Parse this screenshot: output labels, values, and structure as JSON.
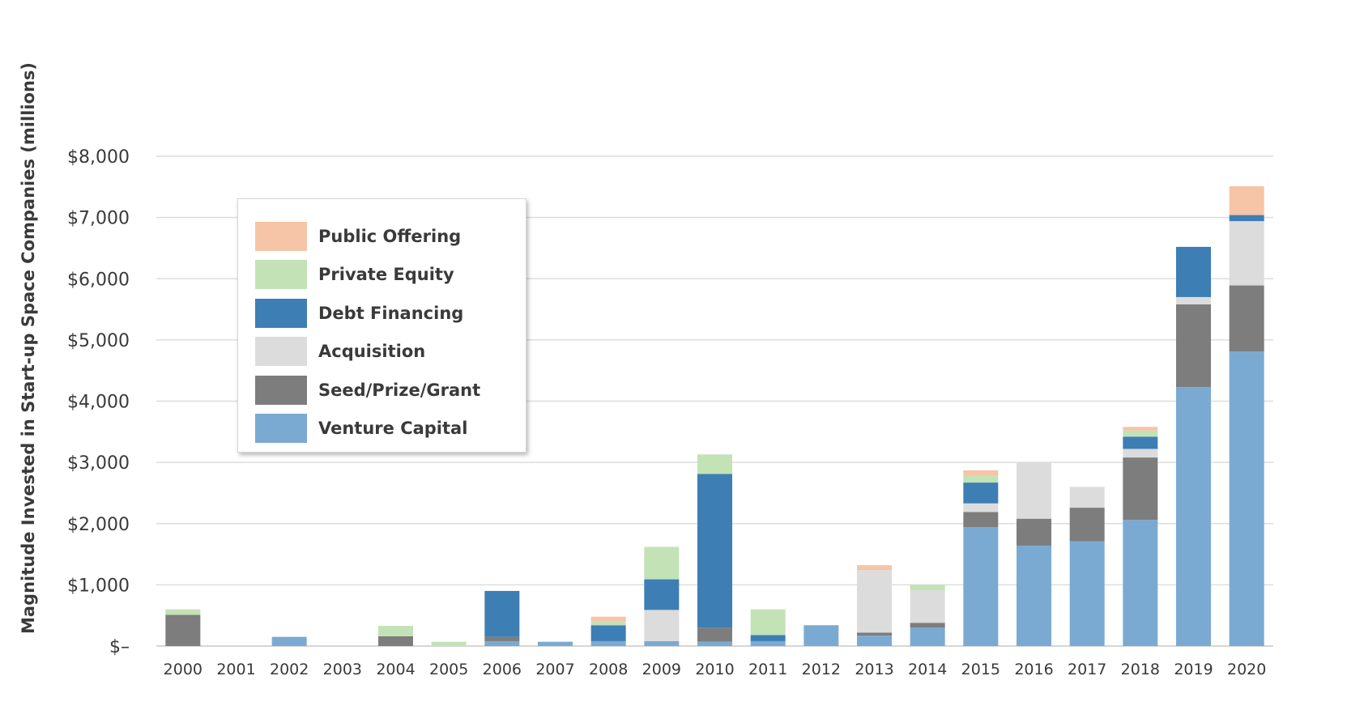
{
  "chart_data": {
    "type": "bar",
    "stacked": true,
    "title": "",
    "xlabel": "",
    "ylabel": "Magnitude Invested in Start-up Space Companies (millions)",
    "ylim": [
      0,
      8000
    ],
    "yticks": [
      0,
      1000,
      2000,
      3000,
      4000,
      5000,
      6000,
      7000,
      8000
    ],
    "ytick_labels": [
      "$–",
      "$1,000",
      "$2,000",
      "$3,000",
      "$4,000",
      "$5,000",
      "$6,000",
      "$7,000",
      "$8,000"
    ],
    "grid": "horizontal",
    "legend_position": "top-left",
    "categories": [
      "2000",
      "2001",
      "2002",
      "2003",
      "2004",
      "2005",
      "2006",
      "2007",
      "2008",
      "2009",
      "2010",
      "2011",
      "2012",
      "2013",
      "2014",
      "2015",
      "2016",
      "2017",
      "2018",
      "2019",
      "2020"
    ],
    "series": [
      {
        "name": "Venture Capital",
        "color": "#7aaad1",
        "values": [
          0,
          0,
          150,
          0,
          0,
          0,
          80,
          70,
          80,
          80,
          70,
          80,
          340,
          170,
          300,
          1940,
          1640,
          1710,
          2060,
          4230,
          4810
        ]
      },
      {
        "name": "Seed/Prize/Grant",
        "color": "#7d7d7d",
        "values": [
          510,
          0,
          0,
          0,
          160,
          0,
          70,
          0,
          0,
          0,
          230,
          0,
          0,
          50,
          80,
          250,
          440,
          550,
          1020,
          1350,
          1080
        ]
      },
      {
        "name": "Acquisition",
        "color": "#dcdcdc",
        "values": [
          0,
          0,
          0,
          0,
          0,
          0,
          0,
          0,
          0,
          510,
          0,
          0,
          0,
          1020,
          530,
          140,
          920,
          340,
          140,
          120,
          1050
        ]
      },
      {
        "name": "Debt Financing",
        "color": "#3d7eb4",
        "values": [
          0,
          0,
          0,
          0,
          0,
          0,
          750,
          0,
          260,
          500,
          2510,
          100,
          0,
          0,
          0,
          340,
          0,
          0,
          200,
          820,
          100
        ]
      },
      {
        "name": "Private Equity",
        "color": "#c3e2b6",
        "values": [
          90,
          0,
          0,
          0,
          170,
          70,
          0,
          0,
          60,
          530,
          320,
          420,
          0,
          0,
          90,
          120,
          0,
          0,
          100,
          0,
          0
        ]
      },
      {
        "name": "Public Offering",
        "color": "#f6c4a6",
        "values": [
          0,
          0,
          0,
          0,
          0,
          0,
          0,
          0,
          80,
          0,
          0,
          0,
          0,
          80,
          0,
          80,
          0,
          0,
          60,
          0,
          470
        ]
      }
    ]
  },
  "legend_order": [
    "Public Offering",
    "Private Equity",
    "Debt Financing",
    "Acquisition",
    "Seed/Prize/Grant",
    "Venture Capital"
  ]
}
